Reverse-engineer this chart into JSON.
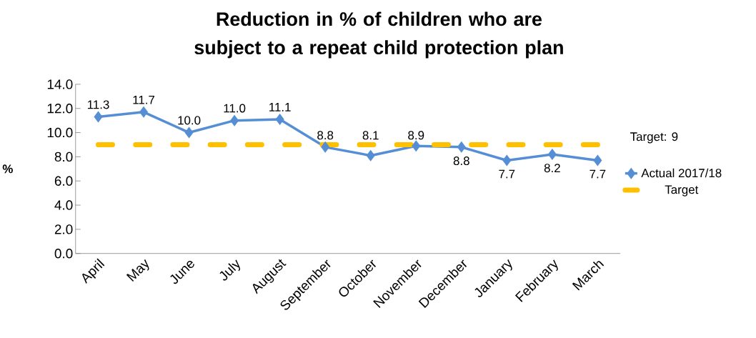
{
  "chart_data": {
    "type": "line",
    "title": "Reduction in % of children who are subject to a repeat child protection plan",
    "ylabel": "%",
    "categories": [
      "April",
      "May",
      "June",
      "July",
      "August",
      "September",
      "October",
      "November",
      "December",
      "January",
      "February",
      "March"
    ],
    "series": [
      {
        "name": "Actual 2017/18",
        "color": "#558ed5",
        "marker": "diamond",
        "line_style": "solid",
        "values": [
          11.3,
          11.7,
          10.0,
          11.0,
          11.1,
          8.8,
          8.1,
          8.9,
          8.8,
          7.7,
          8.2,
          7.7
        ],
        "value_labels": [
          "11.3",
          "11.7",
          "10.0",
          "11.0",
          "11.1",
          "8.8",
          "8.1",
          "8.9",
          "8.8",
          "7.7",
          "8.2",
          "7.7"
        ]
      },
      {
        "name": "Target",
        "color": "#ffc000",
        "marker": "none",
        "line_style": "dashed",
        "values": [
          9,
          9,
          9,
          9,
          9,
          9,
          9,
          9,
          9,
          9,
          9,
          9
        ]
      }
    ],
    "ylim": [
      0,
      14
    ],
    "yticks": [
      {
        "value": 0,
        "label": "0.0"
      },
      {
        "value": 2,
        "label": "2.0"
      },
      {
        "value": 4,
        "label": "4.0"
      },
      {
        "value": 6,
        "label": "6.0"
      },
      {
        "value": 8,
        "label": "8.0"
      },
      {
        "value": 10,
        "label": "10.0"
      },
      {
        "value": 12,
        "label": "12.0"
      },
      {
        "value": 14,
        "label": "14.0"
      }
    ],
    "grid": false,
    "legend": "right",
    "annotations": [
      "Target: 9"
    ]
  }
}
